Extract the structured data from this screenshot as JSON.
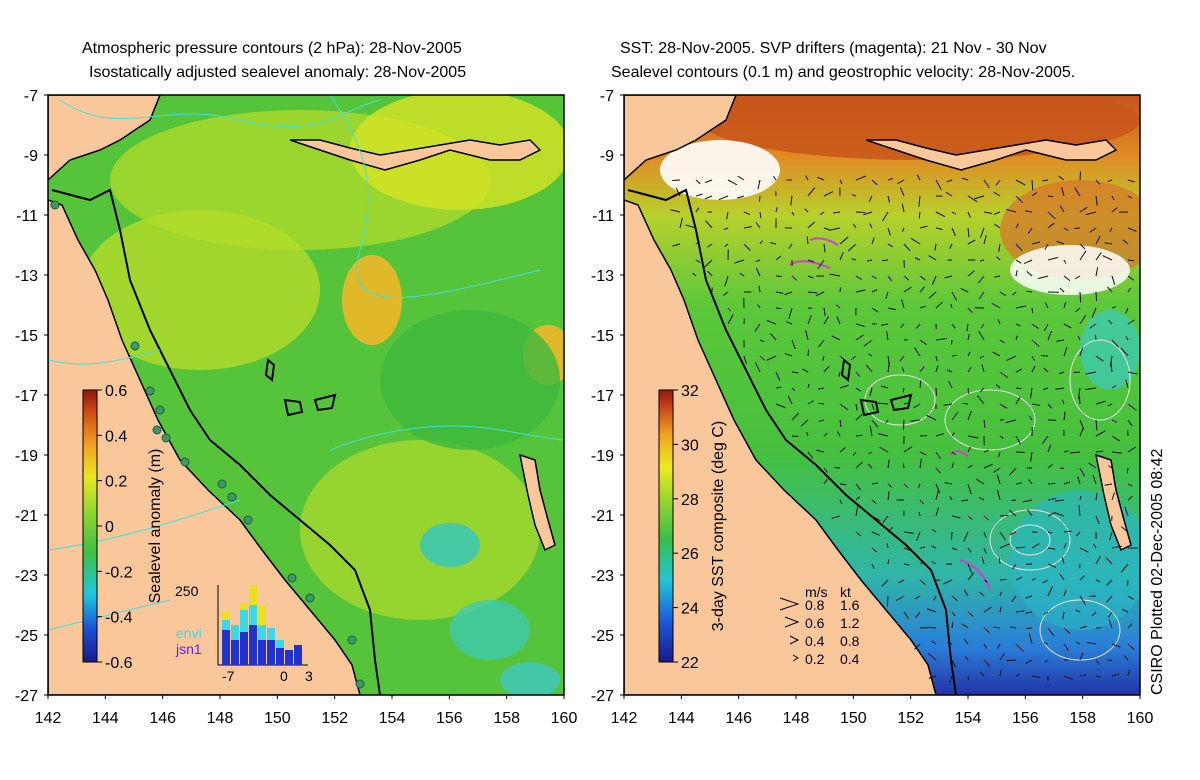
{
  "left_panel": {
    "title_line1": "Atmospheric pressure contours (2 hPa): 28-Nov-2005",
    "title_line2": "Isostatically adjusted sealevel anomaly: 28-Nov-2005",
    "y_ticks": [
      "-7",
      "-9",
      "-11",
      "-13",
      "-15",
      "-17",
      "-19",
      "-21",
      "-23",
      "-25",
      "-27"
    ],
    "x_ticks": [
      "142",
      "144",
      "146",
      "148",
      "150",
      "152",
      "154",
      "156",
      "158",
      "160"
    ],
    "colorbar": {
      "label": "Sealevel anomaly (m)",
      "ticks": [
        "0.6",
        "0.4",
        "0.2",
        "0",
        "-0.2",
        "-0.4",
        "-0.6"
      ],
      "range": [
        -0.6,
        0.6
      ]
    },
    "histogram": {
      "top_label": "250",
      "x_labels": [
        "-7",
        "0",
        "3"
      ],
      "legend": [
        "envi",
        "jsn1"
      ],
      "legend_colors": [
        "#3fd6e6",
        "#6a1bff"
      ]
    }
  },
  "right_panel": {
    "title_line1": "SST: 28-Nov-2005. SVP drifters (magenta): 21 Nov - 30 Nov",
    "title_line2": "Sealevel contours (0.1 m) and geostrophic velocity: 28-Nov-2005.",
    "y_ticks": [
      "-7",
      "-9",
      "-11",
      "-13",
      "-15",
      "-17",
      "-19",
      "-21",
      "-23",
      "-25",
      "-27"
    ],
    "x_ticks": [
      "142",
      "144",
      "146",
      "148",
      "150",
      "152",
      "154",
      "156",
      "158",
      "160"
    ],
    "colorbar": {
      "label": "3-day SST composite (deg C)",
      "ticks": [
        "32",
        "30",
        "28",
        "26",
        "24",
        "22"
      ],
      "range": [
        22,
        32
      ]
    },
    "velocity_key": {
      "header_ms": "m/s",
      "header_kt": "kt",
      "rows": [
        {
          "ms": "0.8",
          "kt": "1.6"
        },
        {
          "ms": "0.6",
          "kt": "1.2"
        },
        {
          "ms": "0.4",
          "kt": "0.8"
        },
        {
          "ms": "0.2",
          "kt": "0.4"
        }
      ]
    }
  },
  "stamp": "CSIRO Plotted 02-Dec-2005 08:42",
  "colors": {
    "land": "#f9c79a",
    "ocean_green": "#56c43a",
    "coast": "#000000",
    "contour_cyan": "#40e0e0",
    "drifter_magenta": "#d040d0"
  }
}
